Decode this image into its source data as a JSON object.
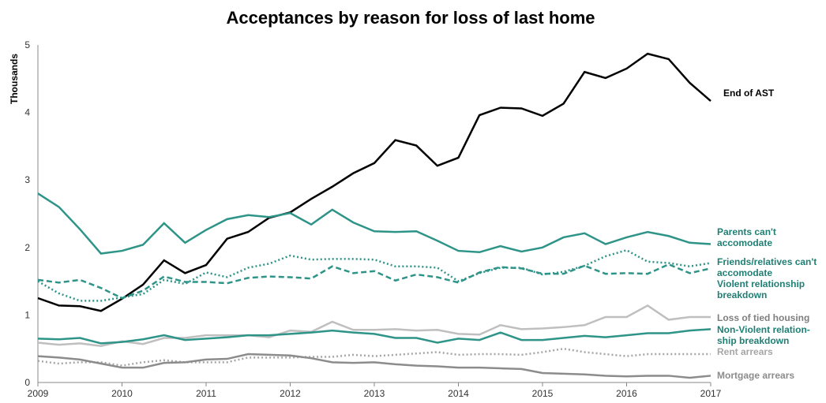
{
  "chart_data": {
    "type": "line",
    "title": "Acceptances by reason for loss of last home",
    "y_label": "Thousands",
    "x": [
      2009,
      2009.25,
      2009.5,
      2009.75,
      2010,
      2010.25,
      2010.5,
      2010.75,
      2011,
      2011.25,
      2011.5,
      2011.75,
      2012,
      2012.25,
      2012.5,
      2012.75,
      2013,
      2013.25,
      2013.5,
      2013.75,
      2014,
      2014.25,
      2014.5,
      2014.75,
      2015,
      2015.25,
      2015.5,
      2015.75,
      2016,
      2016.25,
      2016.5,
      2016.75,
      2017
    ],
    "xlim": [
      2009,
      2017
    ],
    "xticks": [
      2009,
      2010,
      2011,
      2012,
      2013,
      2014,
      2015,
      2016,
      2017
    ],
    "ylim": [
      0,
      5
    ],
    "yticks": [
      0,
      1,
      2,
      3,
      4,
      5
    ],
    "series": [
      {
        "name": "End of AST",
        "color": "#000000",
        "dash": "solid",
        "values": [
          1.25,
          1.14,
          1.13,
          1.06,
          1.24,
          1.45,
          1.81,
          1.62,
          1.74,
          2.13,
          2.23,
          2.44,
          2.52,
          2.72,
          2.9,
          3.1,
          3.25,
          3.59,
          3.51,
          3.21,
          3.33,
          3.96,
          4.07,
          4.06,
          3.95,
          4.13,
          4.6,
          4.51,
          4.65,
          4.87,
          4.79,
          4.44,
          4.17
        ]
      },
      {
        "name": "Parents can't\naccomodate",
        "color": "#2e9488",
        "dash": "solid",
        "values": [
          2.8,
          2.6,
          2.27,
          1.91,
          1.95,
          2.04,
          2.36,
          2.07,
          2.26,
          2.42,
          2.48,
          2.45,
          2.51,
          2.34,
          2.56,
          2.37,
          2.24,
          2.23,
          2.24,
          2.1,
          1.95,
          1.93,
          2.02,
          1.94,
          2.0,
          2.15,
          2.21,
          2.05,
          2.15,
          2.23,
          2.17,
          2.07,
          2.05
        ]
      },
      {
        "name": "Friends/relatives can't\naccomodate",
        "color": "#2e9488",
        "dash": "dotted",
        "values": [
          1.5,
          1.32,
          1.21,
          1.21,
          1.26,
          1.31,
          1.52,
          1.46,
          1.63,
          1.56,
          1.7,
          1.76,
          1.88,
          1.82,
          1.83,
          1.83,
          1.82,
          1.72,
          1.72,
          1.7,
          1.5,
          1.62,
          1.7,
          1.7,
          1.6,
          1.64,
          1.73,
          1.87,
          1.96,
          1.79,
          1.77,
          1.72,
          1.77
        ]
      },
      {
        "name": "Violent relationship\nbreakdown",
        "color": "#2e9488",
        "dash": "dashed",
        "values": [
          1.52,
          1.48,
          1.52,
          1.4,
          1.25,
          1.36,
          1.57,
          1.49,
          1.49,
          1.47,
          1.55,
          1.57,
          1.56,
          1.54,
          1.72,
          1.62,
          1.65,
          1.51,
          1.6,
          1.56,
          1.48,
          1.63,
          1.71,
          1.69,
          1.61,
          1.61,
          1.73,
          1.61,
          1.62,
          1.61,
          1.75,
          1.62,
          1.69
        ]
      },
      {
        "name": "Loss of tied housing",
        "color": "#bfbfbf",
        "dash": "solid",
        "values": [
          0.59,
          0.56,
          0.58,
          0.54,
          0.61,
          0.57,
          0.66,
          0.66,
          0.7,
          0.7,
          0.7,
          0.67,
          0.77,
          0.75,
          0.9,
          0.78,
          0.78,
          0.79,
          0.77,
          0.78,
          0.72,
          0.71,
          0.85,
          0.79,
          0.8,
          0.82,
          0.85,
          0.97,
          0.97,
          1.14,
          0.93,
          0.97,
          0.97
        ]
      },
      {
        "name": "Non-Violent relation-\nship breakdown",
        "color": "#2e9488",
        "dash": "solid",
        "values": [
          0.65,
          0.64,
          0.66,
          0.58,
          0.6,
          0.64,
          0.7,
          0.63,
          0.65,
          0.67,
          0.7,
          0.7,
          0.72,
          0.74,
          0.77,
          0.74,
          0.72,
          0.66,
          0.66,
          0.59,
          0.65,
          0.63,
          0.74,
          0.63,
          0.63,
          0.66,
          0.69,
          0.67,
          0.7,
          0.73,
          0.73,
          0.77,
          0.79
        ]
      },
      {
        "name": "Rent arrears",
        "color": "#a6a6a6",
        "dash": "dotted",
        "values": [
          0.32,
          0.28,
          0.3,
          0.3,
          0.25,
          0.3,
          0.33,
          0.3,
          0.3,
          0.3,
          0.37,
          0.37,
          0.37,
          0.38,
          0.38,
          0.41,
          0.39,
          0.41,
          0.43,
          0.45,
          0.41,
          0.42,
          0.42,
          0.41,
          0.45,
          0.5,
          0.45,
          0.42,
          0.39,
          0.42,
          0.42,
          0.42,
          0.42
        ]
      },
      {
        "name": "Mortgage arrears",
        "color": "#8c8c8c",
        "dash": "solid",
        "values": [
          0.39,
          0.37,
          0.34,
          0.28,
          0.22,
          0.22,
          0.29,
          0.3,
          0.34,
          0.35,
          0.42,
          0.41,
          0.4,
          0.36,
          0.3,
          0.29,
          0.3,
          0.27,
          0.25,
          0.24,
          0.22,
          0.22,
          0.21,
          0.2,
          0.14,
          0.13,
          0.12,
          0.1,
          0.09,
          0.1,
          0.1,
          0.07,
          0.1
        ]
      }
    ]
  }
}
